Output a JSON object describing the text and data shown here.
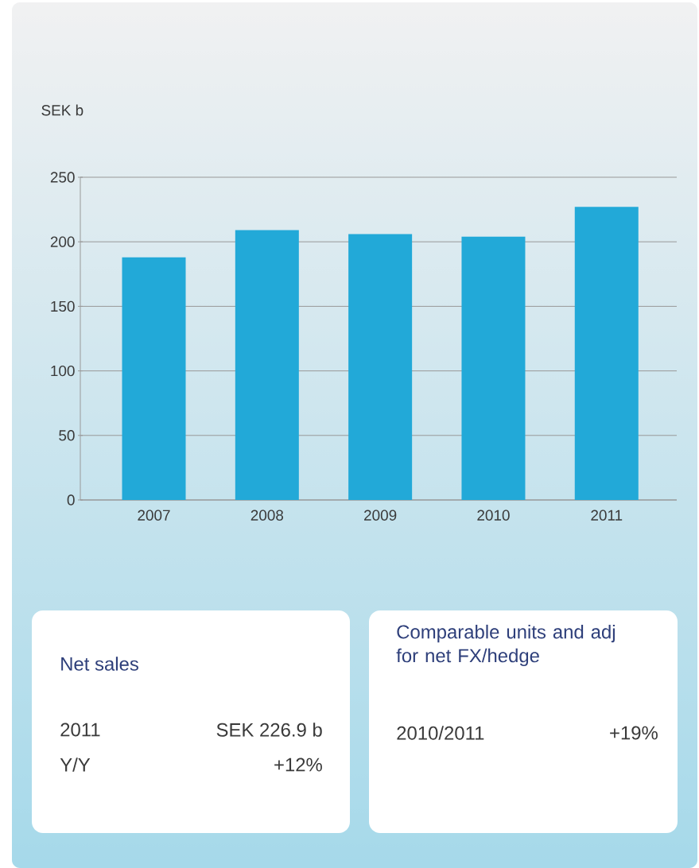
{
  "chart_data": {
    "type": "bar",
    "ylabel": "SEK b",
    "categories": [
      "2007",
      "2008",
      "2009",
      "2010",
      "2011"
    ],
    "values": [
      188,
      209,
      206,
      204,
      227
    ],
    "color": "#22a9d8",
    "ylim": [
      0,
      250
    ],
    "yticks": [
      0,
      50,
      100,
      150,
      200,
      250
    ],
    "grid": "y",
    "annotations": [
      "Net sales",
      "2011",
      "SEK 226.9 b",
      "Y/Y",
      "+12%",
      "Comparable units and adj for net FX/hedge",
      "2010/2011",
      "+19%"
    ]
  }
}
